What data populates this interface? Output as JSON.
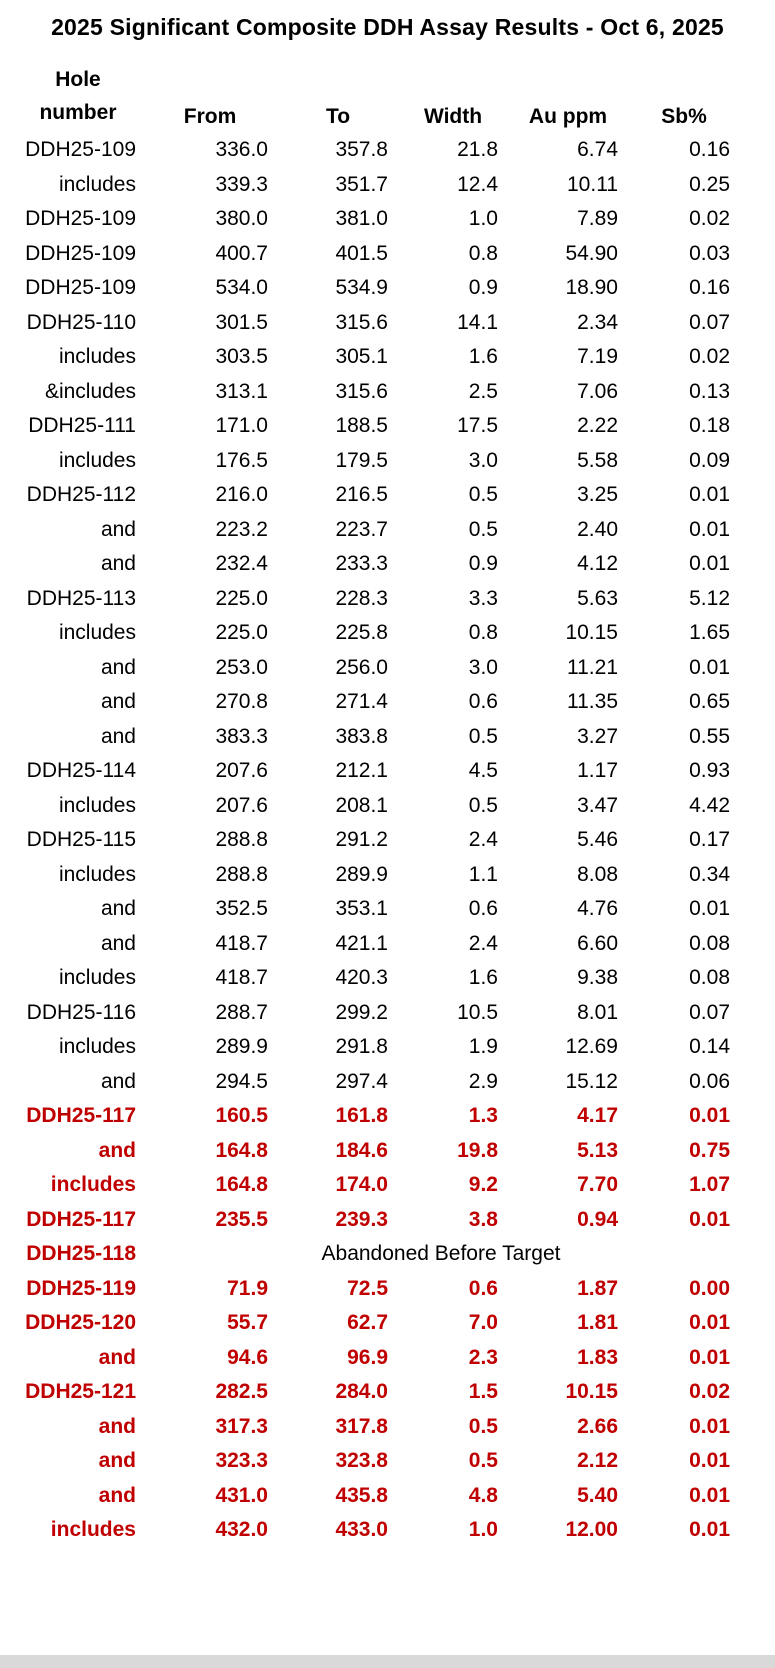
{
  "page": {
    "title": "2025 Significant Composite DDH Assay Results - Oct 6, 2025"
  },
  "colors": {
    "highlight_text": "#c00000",
    "body_text": "#000000",
    "footer_strip": "#d9d9d9"
  },
  "table": {
    "headers": {
      "hole_line1": "Hole",
      "hole_line2": "number",
      "from": "From",
      "to": "To",
      "width": "Width",
      "au": "Au ppm",
      "sb": "Sb%"
    },
    "rows": [
      {
        "hole": "DDH25-109",
        "from": "336.0",
        "to": "357.8",
        "width": "21.8",
        "au": "6.74",
        "sb": "0.16",
        "highlight": false
      },
      {
        "hole": "includes",
        "from": "339.3",
        "to": "351.7",
        "width": "12.4",
        "au": "10.11",
        "sb": "0.25",
        "highlight": false
      },
      {
        "hole": "DDH25-109",
        "from": "380.0",
        "to": "381.0",
        "width": "1.0",
        "au": "7.89",
        "sb": "0.02",
        "highlight": false
      },
      {
        "hole": "DDH25-109",
        "from": "400.7",
        "to": "401.5",
        "width": "0.8",
        "au": "54.90",
        "sb": "0.03",
        "highlight": false
      },
      {
        "hole": "DDH25-109",
        "from": "534.0",
        "to": "534.9",
        "width": "0.9",
        "au": "18.90",
        "sb": "0.16",
        "highlight": false
      },
      {
        "hole": "DDH25-110",
        "from": "301.5",
        "to": "315.6",
        "width": "14.1",
        "au": "2.34",
        "sb": "0.07",
        "highlight": false
      },
      {
        "hole": "includes",
        "from": "303.5",
        "to": "305.1",
        "width": "1.6",
        "au": "7.19",
        "sb": "0.02",
        "highlight": false
      },
      {
        "hole": "&includes",
        "from": "313.1",
        "to": "315.6",
        "width": "2.5",
        "au": "7.06",
        "sb": "0.13",
        "highlight": false
      },
      {
        "hole": "DDH25-111",
        "from": "171.0",
        "to": "188.5",
        "width": "17.5",
        "au": "2.22",
        "sb": "0.18",
        "highlight": false
      },
      {
        "hole": "includes",
        "from": "176.5",
        "to": "179.5",
        "width": "3.0",
        "au": "5.58",
        "sb": "0.09",
        "highlight": false
      },
      {
        "hole": "DDH25-112",
        "from": "216.0",
        "to": "216.5",
        "width": "0.5",
        "au": "3.25",
        "sb": "0.01",
        "highlight": false
      },
      {
        "hole": "and",
        "from": "223.2",
        "to": "223.7",
        "width": "0.5",
        "au": "2.40",
        "sb": "0.01",
        "highlight": false
      },
      {
        "hole": "and",
        "from": "232.4",
        "to": "233.3",
        "width": "0.9",
        "au": "4.12",
        "sb": "0.01",
        "highlight": false
      },
      {
        "hole": "DDH25-113",
        "from": "225.0",
        "to": "228.3",
        "width": "3.3",
        "au": "5.63",
        "sb": "5.12",
        "highlight": false
      },
      {
        "hole": "includes",
        "from": "225.0",
        "to": "225.8",
        "width": "0.8",
        "au": "10.15",
        "sb": "1.65",
        "highlight": false
      },
      {
        "hole": "and",
        "from": "253.0",
        "to": "256.0",
        "width": "3.0",
        "au": "11.21",
        "sb": "0.01",
        "highlight": false
      },
      {
        "hole": "and",
        "from": "270.8",
        "to": "271.4",
        "width": "0.6",
        "au": "11.35",
        "sb": "0.65",
        "highlight": false
      },
      {
        "hole": "and",
        "from": "383.3",
        "to": "383.8",
        "width": "0.5",
        "au": "3.27",
        "sb": "0.55",
        "highlight": false
      },
      {
        "hole": "DDH25-114",
        "from": "207.6",
        "to": "212.1",
        "width": "4.5",
        "au": "1.17",
        "sb": "0.93",
        "highlight": false
      },
      {
        "hole": "includes",
        "from": "207.6",
        "to": "208.1",
        "width": "0.5",
        "au": "3.47",
        "sb": "4.42",
        "highlight": false
      },
      {
        "hole": "DDH25-115",
        "from": "288.8",
        "to": "291.2",
        "width": "2.4",
        "au": "5.46",
        "sb": "0.17",
        "highlight": false
      },
      {
        "hole": "includes",
        "from": "288.8",
        "to": "289.9",
        "width": "1.1",
        "au": "8.08",
        "sb": "0.34",
        "highlight": false
      },
      {
        "hole": "and",
        "from": "352.5",
        "to": "353.1",
        "width": "0.6",
        "au": "4.76",
        "sb": "0.01",
        "highlight": false
      },
      {
        "hole": "and",
        "from": "418.7",
        "to": "421.1",
        "width": "2.4",
        "au": "6.60",
        "sb": "0.08",
        "highlight": false
      },
      {
        "hole": "includes",
        "from": "418.7",
        "to": "420.3",
        "width": "1.6",
        "au": "9.38",
        "sb": "0.08",
        "highlight": false
      },
      {
        "hole": "DDH25-116",
        "from": "288.7",
        "to": "299.2",
        "width": "10.5",
        "au": "8.01",
        "sb": "0.07",
        "highlight": false
      },
      {
        "hole": "includes",
        "from": "289.9",
        "to": "291.8",
        "width": "1.9",
        "au": "12.69",
        "sb": "0.14",
        "highlight": false
      },
      {
        "hole": "and",
        "from": "294.5",
        "to": "297.4",
        "width": "2.9",
        "au": "15.12",
        "sb": "0.06",
        "highlight": false
      },
      {
        "hole": "DDH25-117",
        "from": "160.5",
        "to": "161.8",
        "width": "1.3",
        "au": "4.17",
        "sb": "0.01",
        "highlight": true
      },
      {
        "hole": "and",
        "from": "164.8",
        "to": "184.6",
        "width": "19.8",
        "au": "5.13",
        "sb": "0.75",
        "highlight": true
      },
      {
        "hole": "includes",
        "from": "164.8",
        "to": "174.0",
        "width": "9.2",
        "au": "7.70",
        "sb": "1.07",
        "highlight": true
      },
      {
        "hole": "DDH25-117",
        "from": "235.5",
        "to": "239.3",
        "width": "3.8",
        "au": "0.94",
        "sb": "0.01",
        "highlight": true
      },
      {
        "hole": "DDH25-118",
        "note": "Abandoned Before Target",
        "highlight": true
      },
      {
        "hole": "DDH25-119",
        "from": "71.9",
        "to": "72.5",
        "width": "0.6",
        "au": "1.87",
        "sb": "0.00",
        "highlight": true
      },
      {
        "hole": "DDH25-120",
        "from": "55.7",
        "to": "62.7",
        "width": "7.0",
        "au": "1.81",
        "sb": "0.01",
        "highlight": true
      },
      {
        "hole": "and",
        "from": "94.6",
        "to": "96.9",
        "width": "2.3",
        "au": "1.83",
        "sb": "0.01",
        "highlight": true
      },
      {
        "hole": "DDH25-121",
        "from": "282.5",
        "to": "284.0",
        "width": "1.5",
        "au": "10.15",
        "sb": "0.02",
        "highlight": true
      },
      {
        "hole": "and",
        "from": "317.3",
        "to": "317.8",
        "width": "0.5",
        "au": "2.66",
        "sb": "0.01",
        "highlight": true
      },
      {
        "hole": "and",
        "from": "323.3",
        "to": "323.8",
        "width": "0.5",
        "au": "2.12",
        "sb": "0.01",
        "highlight": true
      },
      {
        "hole": "and",
        "from": "431.0",
        "to": "435.8",
        "width": "4.8",
        "au": "5.40",
        "sb": "0.01",
        "highlight": true
      },
      {
        "hole": "includes",
        "from": "432.0",
        "to": "433.0",
        "width": "1.0",
        "au": "12.00",
        "sb": "0.01",
        "highlight": true
      }
    ]
  }
}
